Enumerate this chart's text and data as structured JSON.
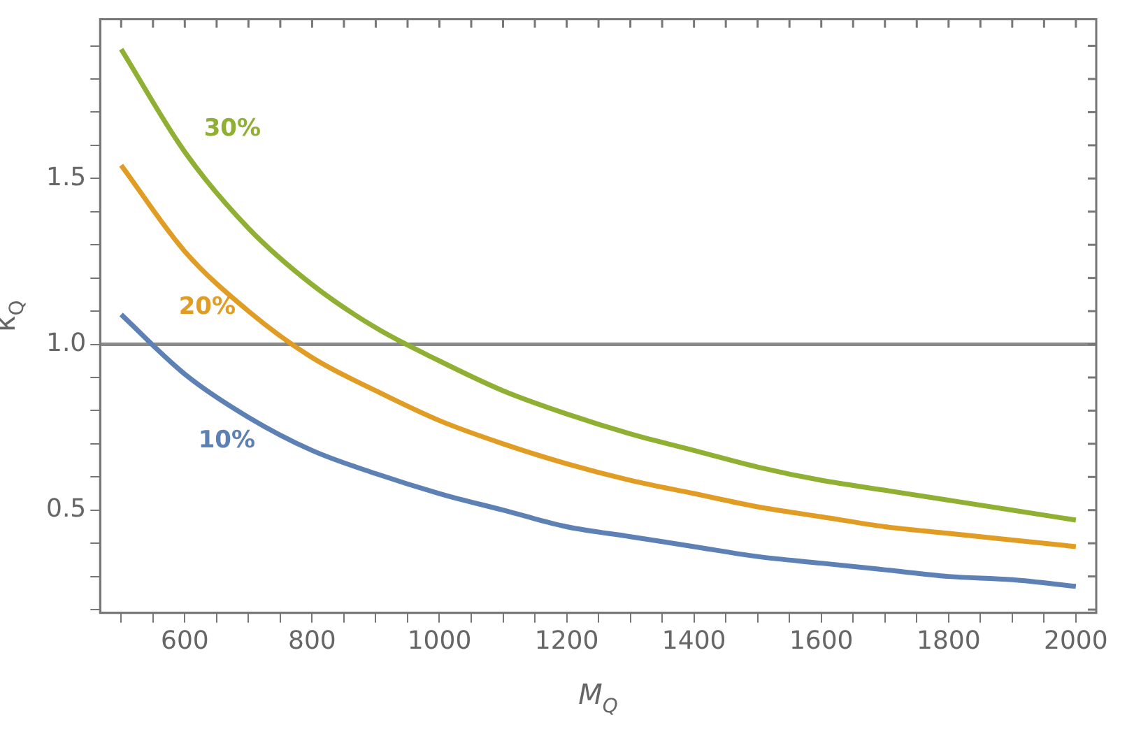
{
  "chart_data": {
    "type": "line",
    "xlabel": "M$_{Q}$",
    "ylabel": "κ$_{Q}$",
    "x": [
      500,
      600,
      700,
      800,
      900,
      1000,
      1100,
      1200,
      1300,
      1400,
      1500,
      1600,
      1700,
      1800,
      1900,
      2000
    ],
    "series": [
      {
        "name": "10%",
        "color": "#5e81b5",
        "values": [
          1.09,
          0.91,
          0.78,
          0.68,
          0.61,
          0.55,
          0.5,
          0.45,
          0.42,
          0.39,
          0.36,
          0.34,
          0.32,
          0.3,
          0.29,
          0.27
        ]
      },
      {
        "name": "20%",
        "color": "#e19c24",
        "values": [
          1.54,
          1.28,
          1.1,
          0.96,
          0.86,
          0.77,
          0.7,
          0.64,
          0.59,
          0.55,
          0.51,
          0.48,
          0.45,
          0.43,
          0.41,
          0.39
        ]
      },
      {
        "name": "30%",
        "color": "#8fb032",
        "values": [
          1.89,
          1.58,
          1.35,
          1.18,
          1.05,
          0.95,
          0.86,
          0.79,
          0.73,
          0.68,
          0.63,
          0.59,
          0.56,
          0.53,
          0.5,
          0.47
        ]
      }
    ],
    "xlim": [
      467,
      2032
    ],
    "ylim": [
      0.19,
      1.98
    ],
    "xticks": [
      {
        "value": 500,
        "label": null
      },
      {
        "value": 550,
        "label": null
      },
      600,
      {
        "value": 650,
        "label": null
      },
      {
        "value": 700,
        "label": null
      },
      {
        "value": 750,
        "label": null
      },
      800,
      {
        "value": 850,
        "label": null
      },
      {
        "value": 900,
        "label": null
      },
      {
        "value": 950,
        "label": null
      },
      1000,
      {
        "value": 1050,
        "label": null
      },
      {
        "value": 1100,
        "label": null
      },
      {
        "value": 1150,
        "label": null
      },
      1200,
      {
        "value": 1250,
        "label": null
      },
      {
        "value": 1300,
        "label": null
      },
      {
        "value": 1350,
        "label": null
      },
      1400,
      {
        "value": 1450,
        "label": null
      },
      {
        "value": 1500,
        "label": null
      },
      {
        "value": 1550,
        "label": null
      },
      1600,
      {
        "value": 1650,
        "label": null
      },
      {
        "value": 1700,
        "label": null
      },
      {
        "value": 1750,
        "label": null
      },
      1800,
      {
        "value": 1850,
        "label": null
      },
      {
        "value": 1900,
        "label": null
      },
      {
        "value": 1950,
        "label": null
      },
      2000
    ],
    "yticks": [
      {
        "value": 0.2,
        "label": null
      },
      {
        "value": 0.3,
        "label": null
      },
      {
        "value": 0.4,
        "label": null
      },
      0.5,
      {
        "value": 0.6,
        "label": null
      },
      {
        "value": 0.7,
        "label": null
      },
      {
        "value": 0.8,
        "label": null
      },
      {
        "value": 0.9,
        "label": null
      },
      {
        "value": 1,
        "label": "1.0"
      },
      {
        "value": 1.1,
        "label": null
      },
      {
        "value": 1.2,
        "label": null
      },
      {
        "value": 1.3,
        "label": null
      },
      {
        "value": 1.4,
        "label": null
      },
      1.5,
      {
        "value": 1.6,
        "label": null
      },
      {
        "value": 1.7,
        "label": null
      },
      {
        "value": 1.8,
        "label": null
      },
      {
        "value": 1.9,
        "label": null
      }
    ],
    "ref_lines": [
      {
        "axis": "y",
        "value": 1,
        "color": "#8a8a8a"
      }
    ],
    "grid": false,
    "legend": false,
    "marker": "none",
    "line_style": "solid"
  }
}
